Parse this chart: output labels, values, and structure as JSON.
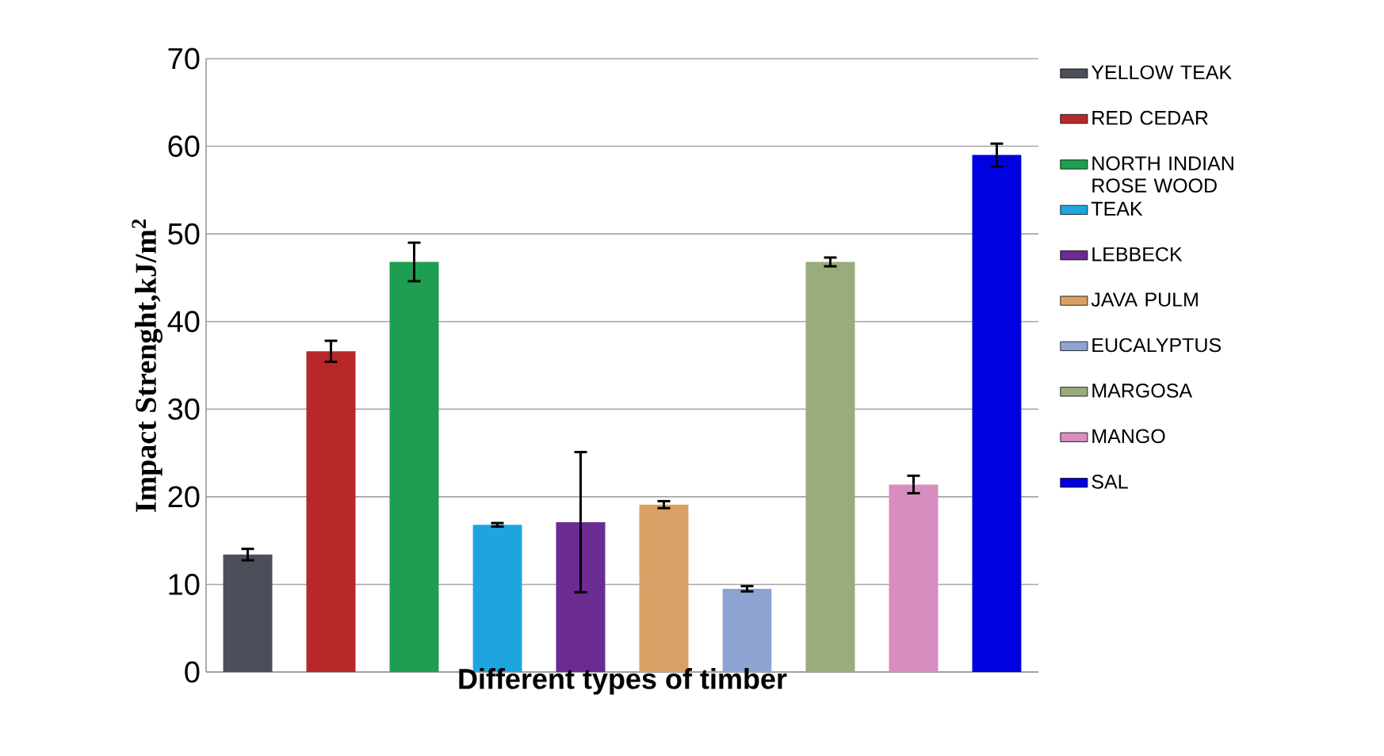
{
  "chart_data": {
    "type": "bar",
    "xlabel": "Different types of timber",
    "ylabel": "Impact Strenght,kJ/m$^{2}$",
    "categories": [
      null,
      null,
      null,
      null,
      null,
      null,
      null,
      null,
      null,
      null
    ],
    "series": [
      {
        "name": "YELLOW TEAK",
        "color": "#4a4f5a",
        "values": [
          13.4,
          null,
          null,
          null,
          null,
          null,
          null,
          null,
          null,
          null
        ],
        "errors": [
          0.65,
          null,
          null,
          null,
          null,
          null,
          null,
          null,
          null,
          null
        ]
      },
      {
        "name": "RED CEDAR",
        "color": "#b8282b",
        "values": [
          null,
          36.6,
          null,
          null,
          null,
          null,
          null,
          null,
          null,
          null
        ],
        "errors": [
          null,
          1.2,
          null,
          null,
          null,
          null,
          null,
          null,
          null,
          null
        ]
      },
      {
        "name": "NORTH INDIAN ROSE WOOD",
        "color": "#1e9e50",
        "values": [
          null,
          null,
          46.8,
          null,
          null,
          null,
          null,
          null,
          null,
          null
        ],
        "errors": [
          null,
          null,
          2.2,
          null,
          null,
          null,
          null,
          null,
          null,
          null
        ]
      },
      {
        "name": "TEAK",
        "color": "#1ea5e0",
        "values": [
          null,
          null,
          null,
          16.8,
          null,
          null,
          null,
          null,
          null,
          null
        ],
        "errors": [
          null,
          null,
          null,
          0.2,
          null,
          null,
          null,
          null,
          null,
          null
        ]
      },
      {
        "name": "LEBBECK",
        "color": "#6a2c91",
        "values": [
          null,
          null,
          null,
          null,
          17.1,
          null,
          null,
          null,
          null,
          null
        ],
        "errors": [
          null,
          null,
          null,
          null,
          8,
          null,
          null,
          null,
          null,
          null
        ]
      },
      {
        "name": "JAVA PULM",
        "color": "#d9a066",
        "values": [
          null,
          null,
          null,
          null,
          null,
          19.1,
          null,
          null,
          null,
          null
        ],
        "errors": [
          null,
          null,
          null,
          null,
          null,
          0.4,
          null,
          null,
          null,
          null
        ]
      },
      {
        "name": "EUCALYPTUS",
        "color": "#8ea3d1",
        "values": [
          null,
          null,
          null,
          null,
          null,
          null,
          9.5,
          null,
          null,
          null
        ],
        "errors": [
          null,
          null,
          null,
          null,
          null,
          null,
          0.3,
          null,
          null,
          null
        ]
      },
      {
        "name": "MARGOSA",
        "color": "#9aab7c",
        "values": [
          null,
          null,
          null,
          null,
          null,
          null,
          null,
          46.8,
          null,
          null
        ],
        "errors": [
          null,
          null,
          null,
          null,
          null,
          null,
          null,
          0.5,
          null,
          null
        ]
      },
      {
        "name": "MANGO",
        "color": "#d98cc0",
        "values": [
          null,
          null,
          null,
          null,
          null,
          null,
          null,
          null,
          21.4,
          null
        ],
        "errors": [
          null,
          null,
          null,
          null,
          null,
          null,
          null,
          null,
          1,
          null
        ]
      },
      {
        "name": "SAL",
        "color": "#0000e0",
        "values": [
          null,
          null,
          null,
          null,
          null,
          null,
          null,
          null,
          null,
          59.0
        ],
        "errors": [
          null,
          null,
          null,
          null,
          null,
          null,
          null,
          null,
          null,
          1.3
        ]
      }
    ],
    "ylim": [
      0,
      70
    ],
    "yticks": [
      0,
      10,
      20,
      30,
      40,
      50,
      60,
      70
    ],
    "grid": "y",
    "legend": "right"
  }
}
